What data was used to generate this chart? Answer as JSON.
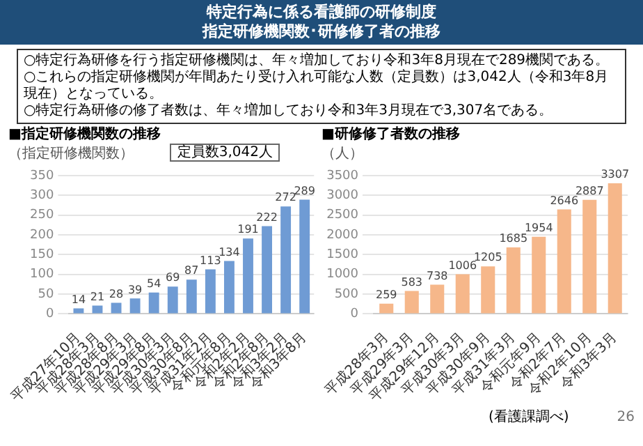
{
  "chart_data": [
    {
      "type": "bar",
      "title": "■指定研修機関数の推移",
      "ylabel": "（指定研修機関数）",
      "annotations": [
        "特定行為に係る看護師の研修制度",
        "指定研修機関数･研修修了者の推移",
        "○特定行為研修を行う指定研修機関は、年々増加しており令和3年8月現在で289機関である。",
        "○これらの指定研修機関が年間あたり受け入れ可能な人数（定員数）は3,042人（令和3年8月現在）となっている。",
        "○特定行為研修の修了者数は、年々増加しており令和3年3月現在で3,307名である。",
        "定員数3,042人"
      ],
      "categories": [
        "平成27年10月",
        "平成28年3月",
        "平成28年8月",
        "平成29年3月",
        "平成29年8月",
        "平成30年3月",
        "平成30年8月",
        "平成31年2月",
        "令和元年8月",
        "令和2年2月",
        "令和2年8月",
        "令和3年2月",
        "令和3年8月"
      ],
      "values": [
        14,
        21,
        28,
        39,
        54,
        69,
        87,
        113,
        134,
        191,
        222,
        272,
        289
      ],
      "color": "#6f9bd4",
      "ylim": [
        0,
        350
      ],
      "yticks": [
        0,
        50,
        100,
        150,
        200,
        250,
        300,
        350
      ],
      "grid": "y",
      "data_labels": true
    },
    {
      "type": "bar",
      "title": "■研修修了者数の推移",
      "ylabel": "（人）",
      "annotations": [
        "(看護課調べ)",
        "26"
      ],
      "categories": [
        "平成28年3月",
        "平成29年3月",
        "平成29年12月",
        "平成30年3月",
        "平成30年9月",
        "平成31年3月",
        "令和元年9月",
        "令和2年7月",
        "令和2年10月",
        "令和3年3月"
      ],
      "values": [
        259,
        583,
        738,
        1006,
        1205,
        1685,
        1954,
        2646,
        2887,
        3307
      ],
      "color": "#f6b78a",
      "ylim": [
        0,
        3500
      ],
      "yticks": [
        0,
        500,
        1000,
        1500,
        2000,
        2500,
        3000,
        3500
      ],
      "grid": "y",
      "data_labels": true
    }
  ]
}
